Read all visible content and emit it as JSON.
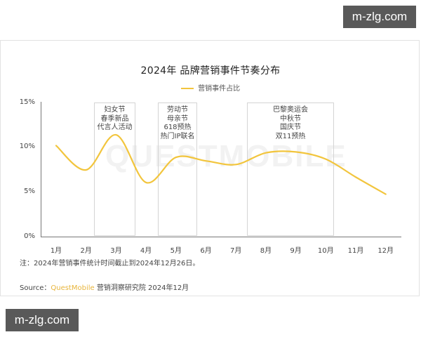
{
  "watermarks": {
    "top_right": "m-zlg.com",
    "bottom_left": "m-zlg.com"
  },
  "background_watermark": "QUESTMOBILE",
  "chart_data": {
    "type": "line",
    "title": "2024年 品牌营销事件节奏分布",
    "xlabel": "",
    "ylabel": "",
    "ylim": [
      0,
      15
    ],
    "yticks": [
      "0%",
      "5%",
      "10%",
      "15%"
    ],
    "categories": [
      "1月",
      "2月",
      "3月",
      "4月",
      "5月",
      "6月",
      "7月",
      "8月",
      "9月",
      "10月",
      "11月",
      "12月"
    ],
    "series": [
      {
        "name": "营销事件占比",
        "color": "#f2c53d",
        "values": [
          10.2,
          7.5,
          11.4,
          6.1,
          8.9,
          8.5,
          8.1,
          9.4,
          9.5,
          8.7,
          6.7,
          4.8
        ]
      }
    ],
    "legend_position": "top",
    "grid": false,
    "annotations": [
      {
        "range": [
          "3月",
          "3月"
        ],
        "lines": [
          "妇女节",
          "春季新品",
          "代言人活动"
        ]
      },
      {
        "range": [
          "5月",
          "5月"
        ],
        "lines": [
          "劳动节",
          "母亲节",
          "618预热",
          "热门IP联名"
        ]
      },
      {
        "range": [
          "8月",
          "10月"
        ],
        "lines": [
          "巴黎奥运会",
          "中秋节",
          "国庆节",
          "双11预热"
        ]
      }
    ]
  },
  "footer": {
    "note": "注：2024年营销事件统计时间截止到2024年12月26日。",
    "source_label": "Source：",
    "source_brand": "QuestMobile",
    "source_rest": " 营销洞察研究院 2024年12月"
  }
}
